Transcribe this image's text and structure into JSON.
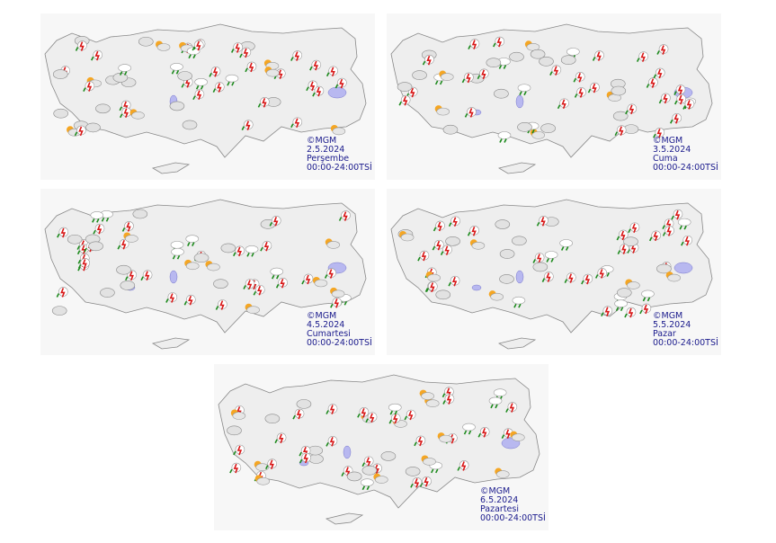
{
  "panels": [
    {
      "copyright": "©MGM",
      "date": "2.5.2024",
      "day": "Perşembe",
      "time": "00:00-24:00TSİ"
    },
    {
      "copyright": "©MGM",
      "date": "3.5.2024",
      "day": "Cuma",
      "time": "00:00-24:00TSİ"
    },
    {
      "copyright": "©MGM",
      "date": "4.5.2024",
      "day": "Cumartesi",
      "time": "00:00-24:00TSİ"
    },
    {
      "copyright": "©MGM",
      "date": "5.5.2024",
      "day": "Pazar",
      "time": "00:00-24:00TSİ"
    },
    {
      "copyright": "©MGM",
      "date": "6.5.2024",
      "day": "Pazartesi",
      "time": "00:00-24:00TSİ"
    }
  ]
}
